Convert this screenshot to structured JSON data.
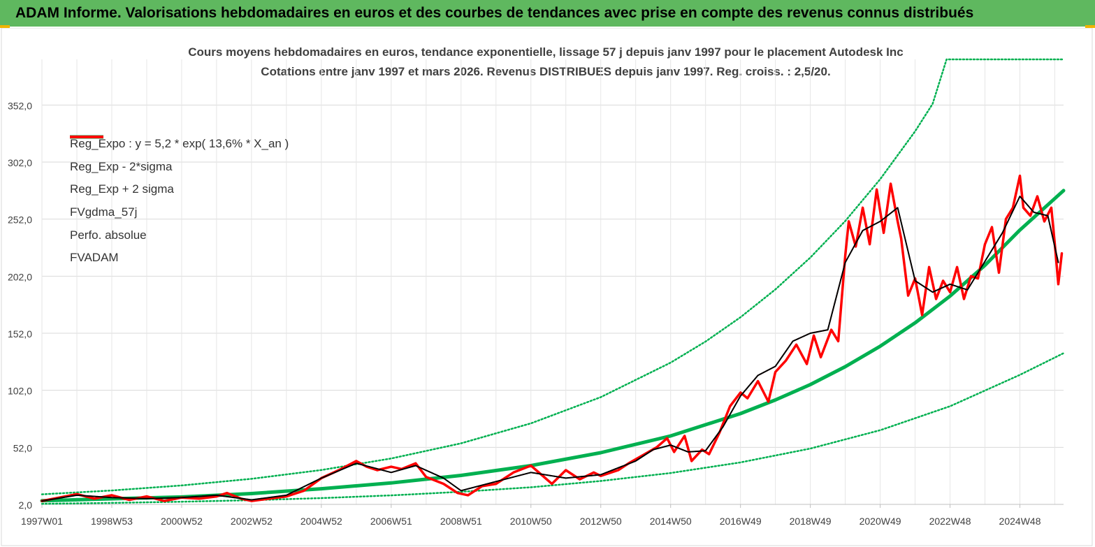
{
  "header": {
    "title": "ADAM Informe. Valorisations hebdomadaires en euros et des courbes de tendances avec prise en compte des revenus connus distribués"
  },
  "chart_data": {
    "type": "line",
    "title": "Cours moyens hebdomadaires en euros, tendance exponentielle, lissage 57 j depuis janv 1997 pour le placement Autodesk Inc",
    "subtitle": "Cotations entre janv 1997 et mars 2026. Revenus DISTRIBUES depuis janv 1997. Reg. croiss. : 2,5/20.",
    "xlabel": "",
    "ylabel": "",
    "ylim": [
      2,
      392
    ],
    "xlim": [
      1997.0,
      2026.25
    ],
    "y_ticks": [
      "2,0",
      "52,0",
      "102,0",
      "152,0",
      "202,0",
      "252,0",
      "302,0",
      "352,0"
    ],
    "y_tick_values": [
      2,
      52,
      102,
      152,
      202,
      252,
      302,
      352
    ],
    "x_ticks": [
      "1997W01",
      "1998W53",
      "2000W52",
      "2002W52",
      "2004W52",
      "2006W51",
      "2008W51",
      "2010W50",
      "2012W50",
      "2014W50",
      "2016W49",
      "2018W49",
      "2020W49",
      "2022W48",
      "2024W48"
    ],
    "x_tick_values": [
      1997.0,
      1999.0,
      2001.0,
      2003.0,
      2005.0,
      2007.0,
      2009.0,
      2011.0,
      2013.0,
      2015.0,
      2017.0,
      2019.0,
      2021.0,
      2023.0,
      2025.0
    ],
    "grid": true,
    "legend_position": "top-left",
    "series": [
      {
        "name": "Reg_Expo : y = 5,2 * exp( 13,6% *  X_an )",
        "color": "#00b050",
        "style": "solid-thick",
        "x": [
          1997.0,
          1999.0,
          2001.0,
          2003.0,
          2005.0,
          2007.0,
          2009.0,
          2011.0,
          2013.0,
          2015.0,
          2017.0,
          2018.0,
          2019.0,
          2020.0,
          2021.0,
          2022.0,
          2023.0,
          2024.0,
          2025.0,
          2026.25
        ],
        "values": [
          5.2,
          6.9,
          8.5,
          11.5,
          15.7,
          20.8,
          27.4,
          36.0,
          47.3,
          62.0,
          81.6,
          93.5,
          107.0,
          122.7,
          140.6,
          161.1,
          184.6,
          211.5,
          242.4,
          277.0
        ]
      },
      {
        "name": "Reg_Exp - 2*sigma",
        "color": "#00b050",
        "style": "dotted",
        "x": [
          1997.0,
          1999.0,
          2001.0,
          2003.0,
          2005.0,
          2007.0,
          2009.0,
          2011.0,
          2013.0,
          2015.0,
          2017.0,
          2019.0,
          2021.0,
          2023.0,
          2025.0,
          2026.25
        ],
        "values": [
          2.5,
          3.3,
          4.3,
          5.7,
          7.5,
          9.9,
          13.0,
          17.0,
          22.5,
          29.5,
          38.8,
          50.9,
          67.0,
          88.0,
          115.5,
          134.5
        ]
      },
      {
        "name": "Reg_Exp + 2 sigma",
        "color": "#00b050",
        "style": "dotted",
        "x": [
          1997.0,
          1999.0,
          2001.0,
          2003.0,
          2005.0,
          2007.0,
          2009.0,
          2011.0,
          2013.0,
          2015.0,
          2016.0,
          2017.0,
          2018.0,
          2019.0,
          2020.0,
          2021.0,
          2022.0,
          2022.5,
          2022.9,
          2026.25
        ],
        "values": [
          10.8,
          14.2,
          18.6,
          24.4,
          32.1,
          42.2,
          55.5,
          73.0,
          96.0,
          126.2,
          144.7,
          166.0,
          190.4,
          218.3,
          250.3,
          287.0,
          329.0,
          353.0,
          392.0,
          392.0
        ]
      },
      {
        "name": "FVgdma_57j",
        "color": "#000000",
        "style": "solid-thin",
        "x": [
          1997.0,
          1998.0,
          1999.0,
          2000.0,
          2001.0,
          2002.0,
          2003.0,
          2004.0,
          2005.0,
          2006.0,
          2006.5,
          2007.0,
          2007.7,
          2008.5,
          2009.0,
          2010.0,
          2011.0,
          2012.0,
          2013.0,
          2013.5,
          2014.0,
          2014.5,
          2015.0,
          2015.5,
          2016.0,
          2016.5,
          2017.0,
          2017.5,
          2018.0,
          2018.5,
          2019.0,
          2019.5,
          2020.0,
          2020.5,
          2021.0,
          2021.5,
          2022.0,
          2022.5,
          2023.0,
          2023.5,
          2024.0,
          2024.5,
          2025.0,
          2025.4,
          2025.8,
          2026.1
        ],
        "values": [
          5,
          10,
          8,
          7,
          8,
          10,
          6,
          10,
          25,
          38,
          34,
          30,
          36,
          25,
          14,
          22,
          30,
          25,
          28,
          34,
          40,
          50,
          54,
          48,
          49,
          70,
          97,
          115,
          123,
          145,
          152,
          155,
          214,
          242,
          250,
          262,
          198,
          188,
          195,
          190,
          215,
          240,
          272,
          258,
          255,
          214
        ]
      },
      {
        "name": "Perfo. absolue",
        "color": "#c00000",
        "style": "dotted",
        "x": [
          1997.0,
          1998.0,
          1999.0,
          2000.0,
          2001.0,
          2002.0,
          2003.0,
          2004.0,
          2005.0,
          2006.0,
          2006.5,
          2007.0,
          2007.7,
          2008.5,
          2009.0,
          2010.0,
          2011.0,
          2012.0,
          2013.0,
          2013.5,
          2014.0,
          2014.5,
          2015.0,
          2015.5,
          2016.0,
          2016.5,
          2017.0,
          2017.5,
          2018.0,
          2018.5,
          2019.0,
          2019.5,
          2020.0,
          2020.5,
          2021.0,
          2021.5,
          2022.0,
          2022.5,
          2023.0,
          2023.5,
          2024.0,
          2024.5,
          2025.0,
          2025.4,
          2025.8,
          2026.1
        ],
        "values": [
          5,
          10,
          8,
          7,
          8,
          10,
          6,
          10,
          25,
          38,
          34,
          30,
          36,
          25,
          14,
          22,
          30,
          25,
          28,
          34,
          40,
          50,
          54,
          48,
          49,
          70,
          97,
          115,
          123,
          145,
          152,
          155,
          214,
          242,
          250,
          262,
          198,
          188,
          195,
          190,
          215,
          240,
          272,
          258,
          255,
          214
        ]
      },
      {
        "name": "FVADAM",
        "color": "#ff0000",
        "style": "solid-thick",
        "x": [
          1997.0,
          1997.5,
          1998.0,
          1998.5,
          1999.0,
          1999.5,
          2000.0,
          2000.5,
          2001.0,
          2001.5,
          2002.0,
          2002.3,
          2002.7,
          2003.0,
          2003.5,
          2004.0,
          2004.5,
          2005.0,
          2005.5,
          2006.0,
          2006.3,
          2006.6,
          2007.0,
          2007.3,
          2007.7,
          2008.0,
          2008.5,
          2008.9,
          2009.2,
          2009.6,
          2010.0,
          2010.5,
          2011.0,
          2011.3,
          2011.6,
          2012.0,
          2012.4,
          2012.8,
          2013.0,
          2013.5,
          2013.8,
          2014.2,
          2014.6,
          2014.9,
          2015.1,
          2015.4,
          2015.6,
          2015.9,
          2016.1,
          2016.4,
          2016.7,
          2017.0,
          2017.2,
          2017.5,
          2017.8,
          2018.0,
          2018.3,
          2018.6,
          2018.9,
          2019.1,
          2019.3,
          2019.6,
          2019.8,
          2020.0,
          2020.1,
          2020.3,
          2020.5,
          2020.7,
          2020.9,
          2021.1,
          2021.3,
          2021.5,
          2021.6,
          2021.8,
          2022.0,
          2022.2,
          2022.4,
          2022.6,
          2022.8,
          2023.0,
          2023.2,
          2023.4,
          2023.6,
          2023.8,
          2024.0,
          2024.2,
          2024.4,
          2024.6,
          2024.8,
          2025.0,
          2025.1,
          2025.3,
          2025.5,
          2025.7,
          2025.9,
          2026.0,
          2026.1,
          2026.2
        ],
        "values": [
          5,
          8,
          11,
          7,
          10,
          6,
          9,
          5,
          8,
          7,
          9,
          12,
          7,
          5,
          7,
          9,
          14,
          25,
          32,
          40,
          35,
          32,
          35,
          33,
          38,
          26,
          20,
          12,
          10,
          18,
          20,
          30,
          36,
          28,
          20,
          32,
          24,
          30,
          27,
          32,
          38,
          45,
          52,
          60,
          48,
          62,
          40,
          50,
          46,
          65,
          88,
          100,
          95,
          110,
          92,
          118,
          128,
          142,
          125,
          150,
          131,
          155,
          145,
          220,
          250,
          228,
          262,
          230,
          278,
          240,
          283,
          250,
          235,
          185,
          200,
          168,
          210,
          182,
          198,
          188,
          210,
          182,
          202,
          200,
          230,
          245,
          205,
          252,
          262,
          290,
          262,
          255,
          272,
          250,
          262,
          230,
          195,
          222
        ]
      }
    ]
  }
}
